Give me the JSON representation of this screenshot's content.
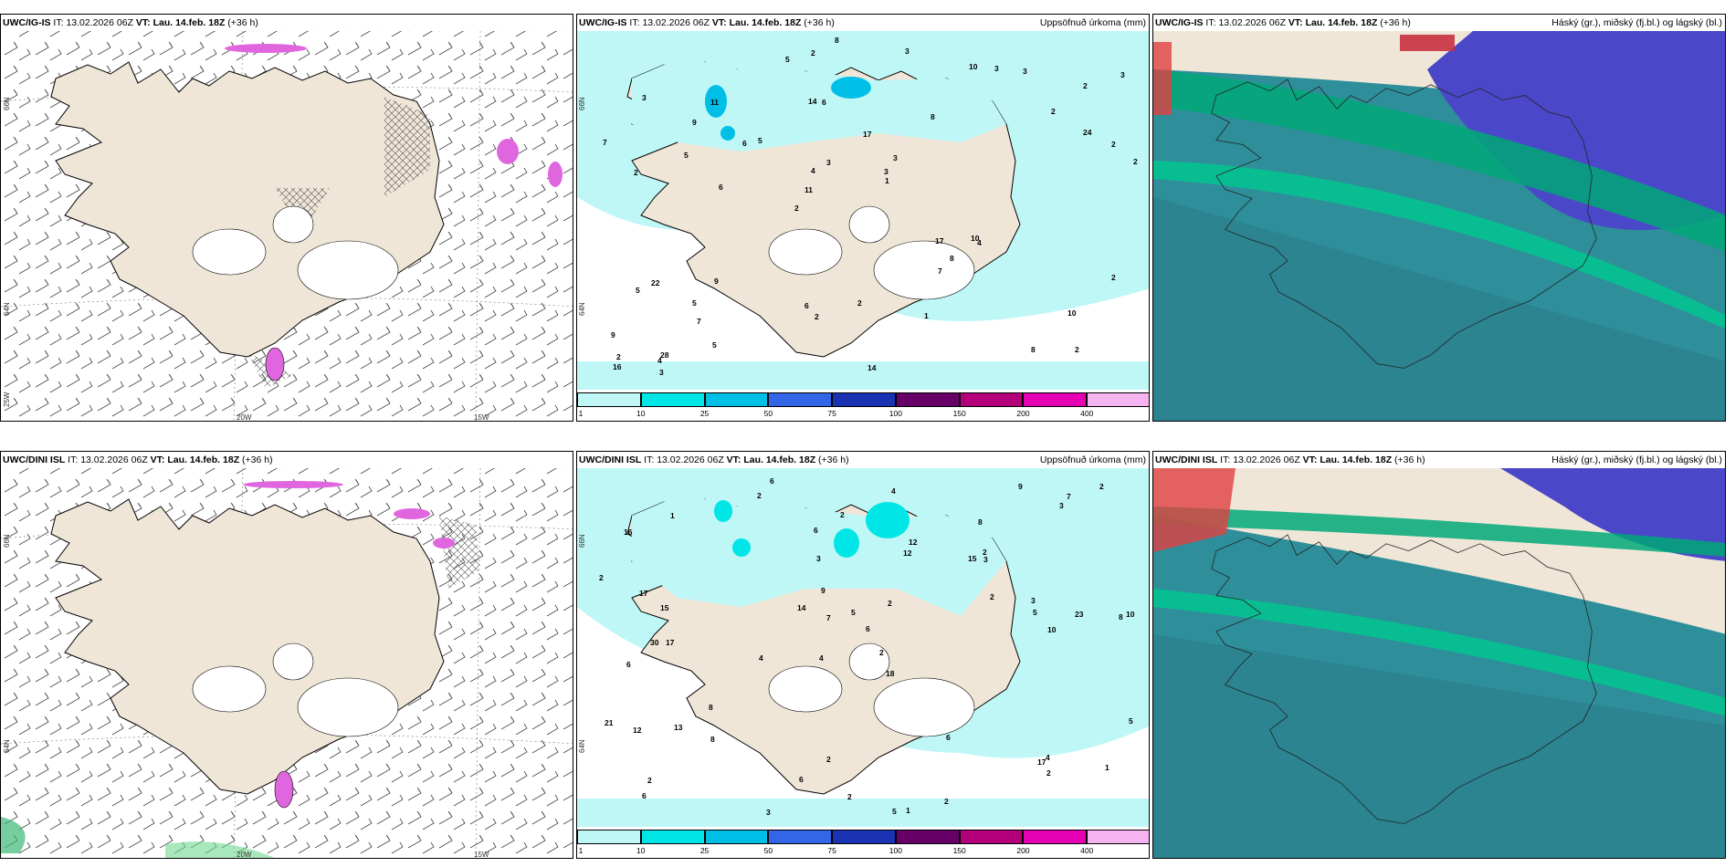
{
  "panels": [
    {
      "id": "p1",
      "model": "UWC/IG-IS",
      "it_label": "IT:",
      "it": "13.02.2026 06Z",
      "vt_label": "VT: Lau. 14.feb. 18Z",
      "lead": "(+36 h)",
      "right_title": "",
      "lon_labels": [
        "20W",
        "15W"
      ],
      "lat_labels": [
        "66N",
        "64N",
        "25W"
      ]
    },
    {
      "id": "p2",
      "model": "UWC/IG-IS",
      "it_label": "IT:",
      "it": "13.02.2026 06Z",
      "vt_label": "VT: Lau. 14.feb. 18Z",
      "lead": "(+36 h)",
      "right_title": "Uppsöfnuð úrkoma (mm)",
      "lat_labels": [
        "66N",
        "64N"
      ]
    },
    {
      "id": "p3",
      "model": "UWC/IG-IS",
      "it_label": "IT:",
      "it": "13.02.2026 06Z",
      "vt_label": "VT: Lau. 14.feb. 18Z",
      "lead": "(+36 h)",
      "right_title": "Háský (gr.), miðský (fj.bl.) og lágský (bl.)"
    },
    {
      "id": "p4",
      "model": "UWC/DINI ISL",
      "it_label": "IT:",
      "it": "13.02.2026 06Z",
      "vt_label": "VT: Lau. 14.feb. 18Z",
      "lead": "(+36 h)",
      "right_title": "",
      "lon_labels": [
        "20W",
        "15W"
      ],
      "lat_labels": [
        "66N",
        "64N"
      ]
    },
    {
      "id": "p5",
      "model": "UWC/DINI ISL",
      "it_label": "IT:",
      "it": "13.02.2026 06Z",
      "vt_label": "VT: Lau. 14.feb. 18Z",
      "lead": "(+36 h)",
      "right_title": "Uppsöfnuð úrkoma (mm)",
      "lat_labels": [
        "66N",
        "64N"
      ]
    },
    {
      "id": "p6",
      "model": "UWC/DINI ISL",
      "it_label": "IT:",
      "it": "13.02.2026 06Z",
      "vt_label": "VT: Lau. 14.feb. 18Z",
      "lead": "(+36 h)",
      "right_title": "Háský (gr.), miðský (fj.bl.) og lágský (bl.)"
    }
  ],
  "colorbar": {
    "ticks": [
      "1",
      "10",
      "25",
      "50",
      "75",
      "100",
      "150",
      "200",
      "400"
    ],
    "colors": [
      "#bff7f7",
      "#00e6e6",
      "#00bfe6",
      "#3366e6",
      "#1a33b3",
      "#660066",
      "#b3007a",
      "#e600b3",
      "#f5b3f0"
    ]
  },
  "precip_numbers_top": [
    "2",
    "2",
    "2",
    "2",
    "8",
    "28",
    "14",
    "17",
    "22",
    "5",
    "9",
    "7",
    "6",
    "3",
    "4",
    "3",
    "2",
    "2",
    "17",
    "24",
    "11",
    "6",
    "4",
    "11",
    "10",
    "9",
    "8",
    "10",
    "10",
    "14",
    "6",
    "5",
    "7",
    "5",
    "2",
    "3",
    "2",
    "2",
    "1",
    "5",
    "2",
    "3",
    "8",
    "1",
    "5",
    "3",
    "16",
    "2",
    "3",
    "8",
    "6",
    "7",
    "9",
    "3",
    "4",
    "3",
    "5",
    "3",
    "2"
  ],
  "precip_numbers_bottom": [
    "6",
    "8",
    "8",
    "4",
    "18",
    "17",
    "16",
    "15",
    "6",
    "12",
    "6",
    "6",
    "2",
    "4",
    "5",
    "1",
    "2",
    "9",
    "2",
    "8",
    "15",
    "30",
    "10",
    "23",
    "21",
    "17",
    "7",
    "5",
    "4",
    "12",
    "17",
    "12",
    "13",
    "14",
    "6",
    "5",
    "3",
    "6",
    "2",
    "2",
    "2",
    "3",
    "2",
    "1",
    "2",
    "3",
    "2",
    "2",
    "2",
    "2",
    "6",
    "10",
    "2",
    "3",
    "4",
    "8",
    "9",
    "5",
    "7",
    "3",
    "1"
  ],
  "colors": {
    "land": "#f0e6d8",
    "sea": "#ffffff",
    "precip_light": "#bff7f7",
    "precip_mid": "#00e6e6",
    "cloud_high": "#00a878",
    "cloud_mid": "#4040cc",
    "cloud_low": "#1f6f90",
    "snow_magenta": "#e066e0"
  }
}
